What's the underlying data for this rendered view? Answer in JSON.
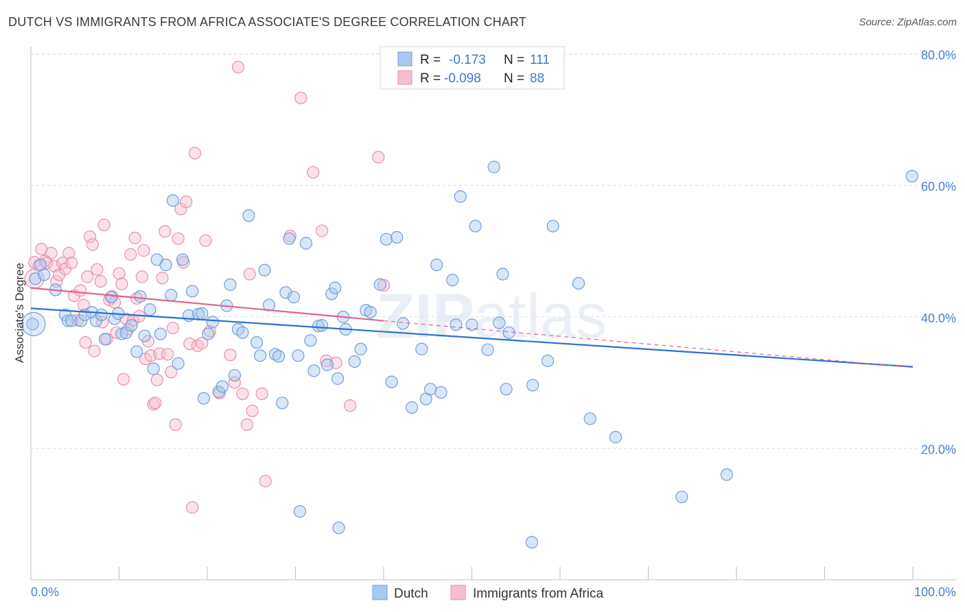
{
  "title": "DUTCH VS IMMIGRANTS FROM AFRICA ASSOCIATE'S DEGREE CORRELATION CHART",
  "source": "Source: ZipAtlas.com",
  "watermark": {
    "bold": "ZIP",
    "light": "atlas"
  },
  "colors": {
    "dutch_fill": "#a9c8ef",
    "dutch_stroke": "#6e9ed8",
    "dutch_line": "#2a6fd3",
    "africa_fill": "#f6bfd0",
    "africa_stroke": "#e78fab",
    "africa_line": "#e0628e",
    "grid": "#dcdcdc",
    "axis_text": "#4a7fd0"
  },
  "legend": {
    "rows": [
      {
        "r_label": "R =",
        "r_value": "-0.173",
        "n_label": "N =",
        "n_value": "111"
      },
      {
        "r_label": "R =",
        "r_value": "-0.098",
        "n_label": "N =",
        "n_value": "88"
      }
    ]
  },
  "chart_data": {
    "type": "scatter",
    "title": "DUTCH VS IMMIGRANTS FROM AFRICA ASSOCIATE'S DEGREE CORRELATION CHART",
    "xlabel": "",
    "ylabel": "Associate's Degree",
    "xlim": [
      0,
      100
    ],
    "ylim": [
      0,
      83
    ],
    "x_tick_labels": [
      "0.0%",
      "100.0%"
    ],
    "y_ticks": [
      20,
      40,
      60,
      80
    ],
    "y_tick_labels": [
      "20.0%",
      "40.0%",
      "60.0%",
      "80.0%"
    ],
    "grid": true,
    "legend_position": "top-center",
    "series": [
      {
        "name": "Dutch",
        "r": -0.173,
        "n": 111,
        "trend": {
          "x0": 0,
          "y0": 41.3,
          "x1": 100,
          "y1": 32.4
        },
        "points": [
          [
            0.2,
            38.9
          ],
          [
            0.5,
            45.8
          ],
          [
            1.1,
            47.9
          ],
          [
            1.5,
            46.4
          ],
          [
            2.8,
            44.1
          ],
          [
            3.9,
            40.3
          ],
          [
            4.2,
            39.4
          ],
          [
            4.6,
            39.4
          ],
          [
            5.7,
            39.4
          ],
          [
            6.1,
            40.3
          ],
          [
            6.9,
            40.7
          ],
          [
            7.4,
            39.4
          ],
          [
            8.0,
            40.3
          ],
          [
            8.4,
            36.6
          ],
          [
            9.1,
            43.0
          ],
          [
            9.5,
            39.7
          ],
          [
            9.9,
            40.5
          ],
          [
            10.3,
            37.4
          ],
          [
            10.8,
            37.6
          ],
          [
            11.4,
            38.7
          ],
          [
            12.0,
            34.7
          ],
          [
            12.4,
            43.1
          ],
          [
            12.9,
            37.1
          ],
          [
            13.5,
            41.1
          ],
          [
            13.9,
            32.1
          ],
          [
            14.3,
            48.7
          ],
          [
            14.7,
            37.4
          ],
          [
            15.3,
            47.9
          ],
          [
            15.9,
            43.3
          ],
          [
            16.1,
            57.7
          ],
          [
            16.7,
            32.9
          ],
          [
            17.2,
            48.7
          ],
          [
            17.9,
            40.2
          ],
          [
            18.3,
            43.9
          ],
          [
            19.0,
            40.4
          ],
          [
            19.4,
            40.5
          ],
          [
            19.6,
            27.6
          ],
          [
            20.1,
            37.4
          ],
          [
            20.6,
            39.2
          ],
          [
            21.3,
            28.6
          ],
          [
            21.7,
            29.4
          ],
          [
            22.2,
            41.7
          ],
          [
            22.6,
            44.9
          ],
          [
            23.1,
            31.1
          ],
          [
            23.5,
            38.1
          ],
          [
            24.0,
            37.6
          ],
          [
            24.7,
            55.4
          ],
          [
            25.6,
            36.1
          ],
          [
            26.0,
            34.1
          ],
          [
            26.5,
            47.1
          ],
          [
            27.0,
            41.8
          ],
          [
            27.7,
            34.3
          ],
          [
            28.1,
            34.0
          ],
          [
            28.5,
            26.9
          ],
          [
            28.9,
            43.7
          ],
          [
            29.3,
            51.9
          ],
          [
            29.8,
            43.0
          ],
          [
            30.3,
            34.1
          ],
          [
            30.5,
            10.4
          ],
          [
            31.2,
            51.2
          ],
          [
            31.7,
            36.4
          ],
          [
            32.1,
            31.8
          ],
          [
            32.6,
            38.6
          ],
          [
            33.0,
            38.7
          ],
          [
            33.6,
            32.7
          ],
          [
            34.1,
            43.5
          ],
          [
            34.5,
            44.4
          ],
          [
            34.8,
            30.6
          ],
          [
            34.9,
            7.9
          ],
          [
            35.4,
            40.0
          ],
          [
            35.7,
            38.1
          ],
          [
            36.7,
            33.2
          ],
          [
            37.4,
            35.1
          ],
          [
            38.0,
            41.0
          ],
          [
            38.5,
            40.7
          ],
          [
            39.6,
            44.9
          ],
          [
            40.3,
            51.8
          ],
          [
            40.9,
            30.1
          ],
          [
            41.5,
            52.1
          ],
          [
            42.2,
            39.0
          ],
          [
            43.2,
            26.2
          ],
          [
            44.3,
            35.1
          ],
          [
            44.8,
            27.5
          ],
          [
            45.3,
            29.0
          ],
          [
            46.0,
            47.9
          ],
          [
            46.5,
            28.5
          ],
          [
            47.8,
            45.6
          ],
          [
            48.2,
            38.8
          ],
          [
            48.7,
            58.3
          ],
          [
            50.0,
            38.8
          ],
          [
            50.4,
            53.8
          ],
          [
            51.8,
            35.0
          ],
          [
            52.5,
            62.8
          ],
          [
            53.1,
            39.1
          ],
          [
            53.5,
            46.5
          ],
          [
            53.9,
            29.0
          ],
          [
            54.2,
            37.6
          ],
          [
            56.9,
            29.6
          ],
          [
            56.8,
            5.7
          ],
          [
            58.6,
            33.3
          ],
          [
            59.2,
            53.8
          ],
          [
            62.1,
            45.1
          ],
          [
            63.4,
            24.5
          ],
          [
            66.3,
            21.7
          ],
          [
            73.8,
            12.6
          ],
          [
            78.9,
            16.0
          ],
          [
            99.9,
            61.4
          ]
        ]
      },
      {
        "name": "Immigrants from Africa",
        "r": -0.098,
        "n": 88,
        "trend": {
          "x0": 0,
          "y0": 44.4,
          "x1": 40,
          "y1": 39.4
        },
        "trend_dashed": {
          "x0": 40,
          "y0": 39.4,
          "x1": 100,
          "y1": 32.3
        },
        "points": [
          [
            0.4,
            48.3
          ],
          [
            0.9,
            47.8
          ],
          [
            1.2,
            50.3
          ],
          [
            1.6,
            48.5
          ],
          [
            1.8,
            48.2
          ],
          [
            2.3,
            49.7
          ],
          [
            2.7,
            47.7
          ],
          [
            2.9,
            45.4
          ],
          [
            3.2,
            46.4
          ],
          [
            3.6,
            48.2
          ],
          [
            3.9,
            47.3
          ],
          [
            4.3,
            49.7
          ],
          [
            4.6,
            48.2
          ],
          [
            4.9,
            43.2
          ],
          [
            5.3,
            39.5
          ],
          [
            5.6,
            44.0
          ],
          [
            6.0,
            41.8
          ],
          [
            6.2,
            36.1
          ],
          [
            6.4,
            46.1
          ],
          [
            6.7,
            52.2
          ],
          [
            7.0,
            51.0
          ],
          [
            7.2,
            34.8
          ],
          [
            7.5,
            47.2
          ],
          [
            7.9,
            45.4
          ],
          [
            8.1,
            39.2
          ],
          [
            8.3,
            54.0
          ],
          [
            8.6,
            36.6
          ],
          [
            8.9,
            42.6
          ],
          [
            9.2,
            43.1
          ],
          [
            9.5,
            42.2
          ],
          [
            9.7,
            37.6
          ],
          [
            10.0,
            46.6
          ],
          [
            10.3,
            45.0
          ],
          [
            10.5,
            30.5
          ],
          [
            10.8,
            39.7
          ],
          [
            11.0,
            38.1
          ],
          [
            11.3,
            49.5
          ],
          [
            11.6,
            39.5
          ],
          [
            11.8,
            52.0
          ],
          [
            12.0,
            42.8
          ],
          [
            12.3,
            40.1
          ],
          [
            12.6,
            46.1
          ],
          [
            12.8,
            50.1
          ],
          [
            13.0,
            33.6
          ],
          [
            13.3,
            36.3
          ],
          [
            13.6,
            34.1
          ],
          [
            13.9,
            26.7
          ],
          [
            14.1,
            26.9
          ],
          [
            14.3,
            30.4
          ],
          [
            14.6,
            34.4
          ],
          [
            14.9,
            45.9
          ],
          [
            15.2,
            53.0
          ],
          [
            15.5,
            34.3
          ],
          [
            15.9,
            31.6
          ],
          [
            16.1,
            38.3
          ],
          [
            16.4,
            23.6
          ],
          [
            16.7,
            51.9
          ],
          [
            17.0,
            56.4
          ],
          [
            17.3,
            48.3
          ],
          [
            17.6,
            57.5
          ],
          [
            18.0,
            35.9
          ],
          [
            18.3,
            11.0
          ],
          [
            18.6,
            64.9
          ],
          [
            18.9,
            35.6
          ],
          [
            19.4,
            36.0
          ],
          [
            19.8,
            51.6
          ],
          [
            20.3,
            37.8
          ],
          [
            21.4,
            28.4
          ],
          [
            22.6,
            34.2
          ],
          [
            23.1,
            30.0
          ],
          [
            23.5,
            78.0
          ],
          [
            24.0,
            28.3
          ],
          [
            24.5,
            23.6
          ],
          [
            24.8,
            46.5
          ],
          [
            25.1,
            25.7
          ],
          [
            26.2,
            28.3
          ],
          [
            26.6,
            15.0
          ],
          [
            29.4,
            52.3
          ],
          [
            30.6,
            73.3
          ],
          [
            32.0,
            62.0
          ],
          [
            33.0,
            53.1
          ],
          [
            33.5,
            33.3
          ],
          [
            34.6,
            33.0
          ],
          [
            36.2,
            26.5
          ],
          [
            39.4,
            64.3
          ],
          [
            40.0,
            44.8
          ]
        ]
      }
    ]
  },
  "bottom_legend": {
    "items": [
      {
        "label": "Dutch"
      },
      {
        "label": "Immigrants from Africa"
      }
    ]
  }
}
